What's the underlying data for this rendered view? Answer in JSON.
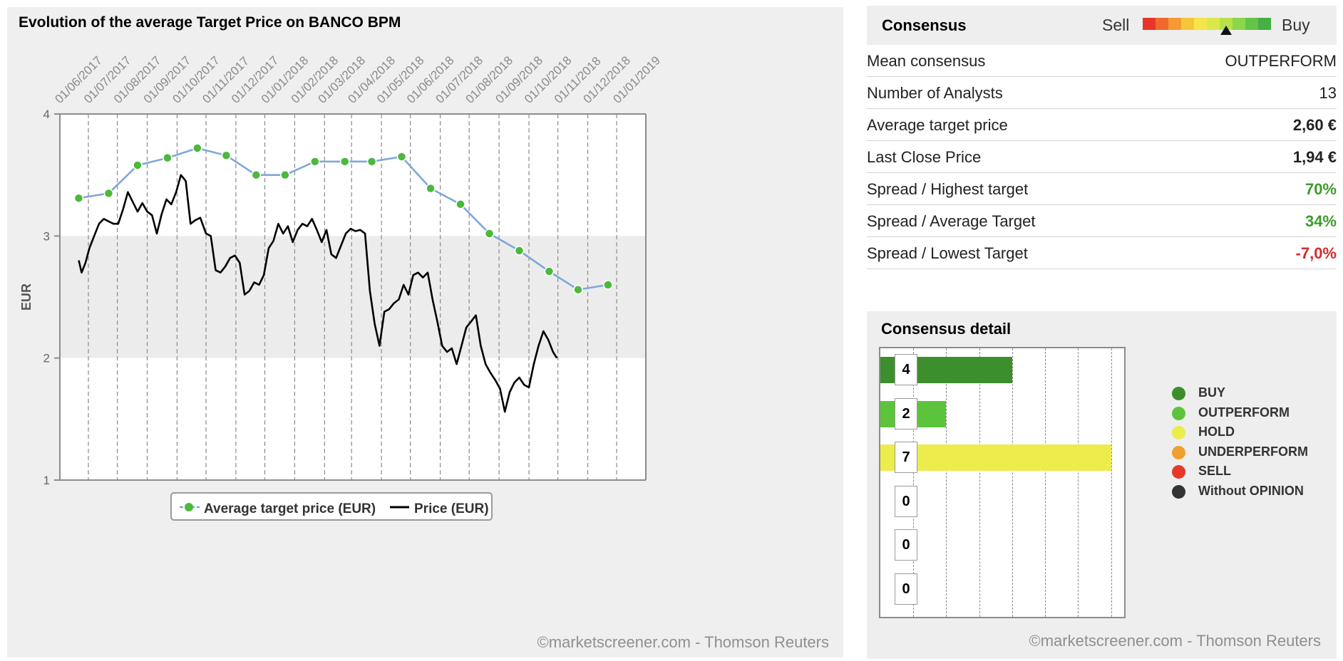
{
  "chart_data": [
    {
      "type": "line",
      "title": "Evolution of the average Target Price on BANCO BPM",
      "ylabel": "EUR",
      "xlabel": "",
      "ylim": [
        1,
        4
      ],
      "y_ticks": [
        "1",
        "2",
        "3",
        "4"
      ],
      "x_ticks": [
        "01/06/2017",
        "01/07/2017",
        "01/08/2017",
        "01/09/2017",
        "01/10/2017",
        "01/11/2017",
        "01/12/2017",
        "01/01/2018",
        "01/02/2018",
        "01/03/2018",
        "01/04/2018",
        "01/05/2018",
        "01/06/2018",
        "01/07/2018",
        "01/08/2018",
        "01/09/2018",
        "01/10/2018",
        "01/11/2018",
        "01/12/2018",
        "01/01/2019"
      ],
      "shaded_band": [
        2,
        3
      ],
      "grid": "vertical dashed",
      "legend_position": "bottom",
      "series": [
        {
          "name": "Average target price (EUR)",
          "color": "#7fa7dc",
          "marker_color": "#4cb83c",
          "points": [
            [
              "2017-05-22",
              3.31
            ],
            [
              "2017-06-22",
              3.35
            ],
            [
              "2017-07-22",
              3.58
            ],
            [
              "2017-08-22",
              3.64
            ],
            [
              "2017-09-22",
              3.72
            ],
            [
              "2017-10-22",
              3.66
            ],
            [
              "2017-11-22",
              3.5
            ],
            [
              "2017-12-22",
              3.5
            ],
            [
              "2018-01-22",
              3.61
            ],
            [
              "2018-02-22",
              3.61
            ],
            [
              "2018-03-22",
              3.61
            ],
            [
              "2018-04-22",
              3.65
            ],
            [
              "2018-05-22",
              3.39
            ],
            [
              "2018-06-22",
              3.26
            ],
            [
              "2018-07-22",
              3.02
            ],
            [
              "2018-08-22",
              2.88
            ],
            [
              "2018-09-22",
              2.71
            ],
            [
              "2018-10-22",
              2.56
            ],
            [
              "2018-11-22",
              2.6
            ]
          ]
        },
        {
          "name": "Price (EUR)",
          "color": "#000000",
          "points": [
            [
              "2017-05-22",
              2.8
            ],
            [
              "2017-05-25",
              2.7
            ],
            [
              "2017-05-29",
              2.78
            ],
            [
              "2017-06-02",
              2.9
            ],
            [
              "2017-06-07",
              3.0
            ],
            [
              "2017-06-12",
              3.1
            ],
            [
              "2017-06-17",
              3.14
            ],
            [
              "2017-06-22",
              3.12
            ],
            [
              "2017-06-27",
              3.1
            ],
            [
              "2017-07-02",
              3.1
            ],
            [
              "2017-07-07",
              3.22
            ],
            [
              "2017-07-12",
              3.36
            ],
            [
              "2017-07-17",
              3.28
            ],
            [
              "2017-07-22",
              3.2
            ],
            [
              "2017-07-27",
              3.27
            ],
            [
              "2017-08-01",
              3.2
            ],
            [
              "2017-08-06",
              3.17
            ],
            [
              "2017-08-11",
              3.02
            ],
            [
              "2017-08-16",
              3.18
            ],
            [
              "2017-08-21",
              3.3
            ],
            [
              "2017-08-26",
              3.26
            ],
            [
              "2017-08-31",
              3.36
            ],
            [
              "2017-09-05",
              3.5
            ],
            [
              "2017-09-10",
              3.45
            ],
            [
              "2017-09-15",
              3.1
            ],
            [
              "2017-09-20",
              3.13
            ],
            [
              "2017-09-25",
              3.15
            ],
            [
              "2017-10-01",
              3.02
            ],
            [
              "2017-10-06",
              3.0
            ],
            [
              "2017-10-11",
              2.72
            ],
            [
              "2017-10-16",
              2.7
            ],
            [
              "2017-10-21",
              2.75
            ],
            [
              "2017-10-26",
              2.82
            ],
            [
              "2017-10-31",
              2.84
            ],
            [
              "2017-11-05",
              2.78
            ],
            [
              "2017-11-10",
              2.52
            ],
            [
              "2017-11-15",
              2.55
            ],
            [
              "2017-11-20",
              2.62
            ],
            [
              "2017-11-25",
              2.6
            ],
            [
              "2017-11-30",
              2.68
            ],
            [
              "2017-12-05",
              2.9
            ],
            [
              "2017-12-10",
              2.96
            ],
            [
              "2017-12-15",
              3.1
            ],
            [
              "2017-12-20",
              3.02
            ],
            [
              "2017-12-25",
              3.08
            ],
            [
              "2017-12-30",
              2.95
            ],
            [
              "2018-01-04",
              3.05
            ],
            [
              "2018-01-09",
              3.1
            ],
            [
              "2018-01-14",
              3.08
            ],
            [
              "2018-01-19",
              3.14
            ],
            [
              "2018-01-24",
              3.05
            ],
            [
              "2018-01-29",
              2.95
            ],
            [
              "2018-02-03",
              3.05
            ],
            [
              "2018-02-08",
              2.85
            ],
            [
              "2018-02-13",
              2.82
            ],
            [
              "2018-02-18",
              2.92
            ],
            [
              "2018-02-23",
              3.02
            ],
            [
              "2018-02-28",
              3.06
            ],
            [
              "2018-03-05",
              3.04
            ],
            [
              "2018-03-10",
              3.05
            ],
            [
              "2018-03-15",
              3.02
            ],
            [
              "2018-03-20",
              2.55
            ],
            [
              "2018-03-25",
              2.28
            ],
            [
              "2018-03-30",
              2.1
            ],
            [
              "2018-04-04",
              2.38
            ],
            [
              "2018-04-09",
              2.4
            ],
            [
              "2018-04-14",
              2.45
            ],
            [
              "2018-04-19",
              2.48
            ],
            [
              "2018-04-24",
              2.6
            ],
            [
              "2018-04-29",
              2.52
            ],
            [
              "2018-05-04",
              2.68
            ],
            [
              "2018-05-09",
              2.7
            ],
            [
              "2018-05-14",
              2.66
            ],
            [
              "2018-05-19",
              2.7
            ],
            [
              "2018-05-24",
              2.48
            ],
            [
              "2018-05-29",
              2.3
            ],
            [
              "2018-06-03",
              2.1
            ],
            [
              "2018-06-08",
              2.05
            ],
            [
              "2018-06-13",
              2.08
            ],
            [
              "2018-06-18",
              1.95
            ],
            [
              "2018-06-23",
              2.1
            ],
            [
              "2018-06-28",
              2.25
            ],
            [
              "2018-07-03",
              2.3
            ],
            [
              "2018-07-08",
              2.35
            ],
            [
              "2018-07-13",
              2.1
            ],
            [
              "2018-07-18",
              1.95
            ],
            [
              "2018-07-23",
              1.88
            ],
            [
              "2018-07-28",
              1.82
            ],
            [
              "2018-08-02",
              1.75
            ],
            [
              "2018-08-07",
              1.56
            ],
            [
              "2018-08-12",
              1.72
            ],
            [
              "2018-08-17",
              1.8
            ],
            [
              "2018-08-22",
              1.84
            ],
            [
              "2018-08-27",
              1.78
            ],
            [
              "2018-09-01",
              1.76
            ],
            [
              "2018-09-06",
              1.95
            ],
            [
              "2018-09-11",
              2.1
            ],
            [
              "2018-09-16",
              2.22
            ],
            [
              "2018-09-21",
              2.15
            ],
            [
              "2018-09-26",
              2.05
            ],
            [
              "2018-09-30",
              2.0
            ]
          ]
        }
      ]
    },
    {
      "type": "bar",
      "title": "Consensus detail",
      "categories": [
        "BUY",
        "OUTPERFORM",
        "HOLD",
        "UNDERPERFORM",
        "SELL",
        "Without OPINION"
      ],
      "values": [
        4,
        2,
        7,
        0,
        0,
        0
      ],
      "xlim": [
        0,
        7.4
      ],
      "grid": "vertical dashed",
      "legend_position": "right"
    }
  ],
  "left_panel": {
    "credit": "©marketscreener.com - Thomson Reuters",
    "legend": [
      {
        "label": "Average target price (EUR)",
        "style": "dashed-with-dots",
        "color": "#7fa7dc",
        "marker_color": "#4cb83c"
      },
      {
        "label": "Price (EUR)",
        "style": "solid",
        "color": "#000000"
      }
    ]
  },
  "consensus": {
    "title": "Consensus",
    "gauge": {
      "left_label": "Sell",
      "right_label": "Buy",
      "colors": [
        "#e8352a",
        "#ee6a2c",
        "#f39a32",
        "#f6c63a",
        "#f4e54a",
        "#dbe84a",
        "#b8e04a",
        "#8cd64a",
        "#62c448",
        "#45b044"
      ],
      "position": 0.65
    },
    "rows": [
      {
        "label": "Mean consensus",
        "value": "OUTPERFORM",
        "style": "normal"
      },
      {
        "label": "Number of Analysts",
        "value": "13",
        "style": "normal"
      },
      {
        "label": "Average target price",
        "value": "2,60 €",
        "style": "bold"
      },
      {
        "label": "Last Close Price",
        "value": "1,94 €",
        "style": "bold"
      },
      {
        "label": "Spread / Highest target",
        "value": "70%",
        "style": "pos"
      },
      {
        "label": "Spread / Average Target",
        "value": "34%",
        "style": "pos"
      },
      {
        "label": "Spread / Lowest Target",
        "value": "-7,0%",
        "style": "neg"
      }
    ]
  },
  "consensus_detail": {
    "title": "Consensus detail",
    "credit": "©marketscreener.com - Thomson Reuters",
    "legend": [
      {
        "label": "BUY",
        "color": "#3c8f2c"
      },
      {
        "label": "OUTPERFORM",
        "color": "#5cc43c"
      },
      {
        "label": "HOLD",
        "color": "#ecec4c"
      },
      {
        "label": "UNDERPERFORM",
        "color": "#f0a030"
      },
      {
        "label": "SELL",
        "color": "#e53a2a"
      },
      {
        "label": "Without OPINION",
        "color": "#333333"
      }
    ]
  }
}
